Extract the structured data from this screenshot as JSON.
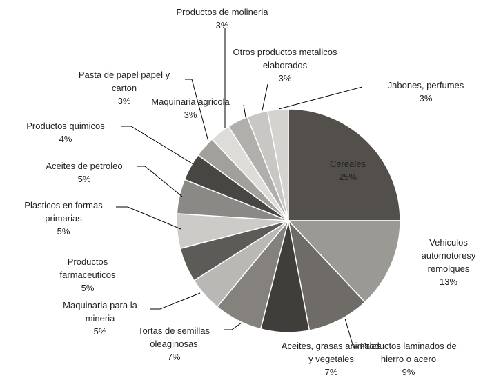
{
  "chart_data": {
    "type": "pie",
    "categories": [
      "Cereales",
      "Vehiculos automotoresy remolques",
      "Productos laminados de hierro o acero",
      "Aceites, grasas animales y vegetales",
      "Tortas de semillas oleaginosas",
      "Maquinaria para la mineria",
      "Productos farmaceuticos",
      "Plasticos en formas primarias",
      "Aceites de petroleo",
      "Productos quimicos",
      "Pasta de papel papel y carton",
      "Productos de molineria",
      "Maquinaria agricola",
      "Otros productos metalicos elaborados",
      "Jabones,  perfumes"
    ],
    "values": [
      25,
      13,
      9,
      7,
      7,
      5,
      5,
      5,
      5,
      4,
      3,
      3,
      3,
      3,
      3
    ],
    "value_labels": [
      "25%",
      "13%",
      "9%",
      "7%",
      "7%",
      "5%",
      "5%",
      "5%",
      "5%",
      "4%",
      "3%",
      "3%",
      "3%",
      "3%",
      "3%"
    ],
    "colors": [
      "#534f4b",
      "#9b9994",
      "#6f6c68",
      "#403e3b",
      "#85827e",
      "#bab8b4",
      "#5d5b57",
      "#cdcbc8",
      "#8b8985",
      "#484643",
      "#a3a09c",
      "#dedcd9",
      "#b1afab",
      "#c9c7c4",
      "#d5d3d0"
    ]
  }
}
